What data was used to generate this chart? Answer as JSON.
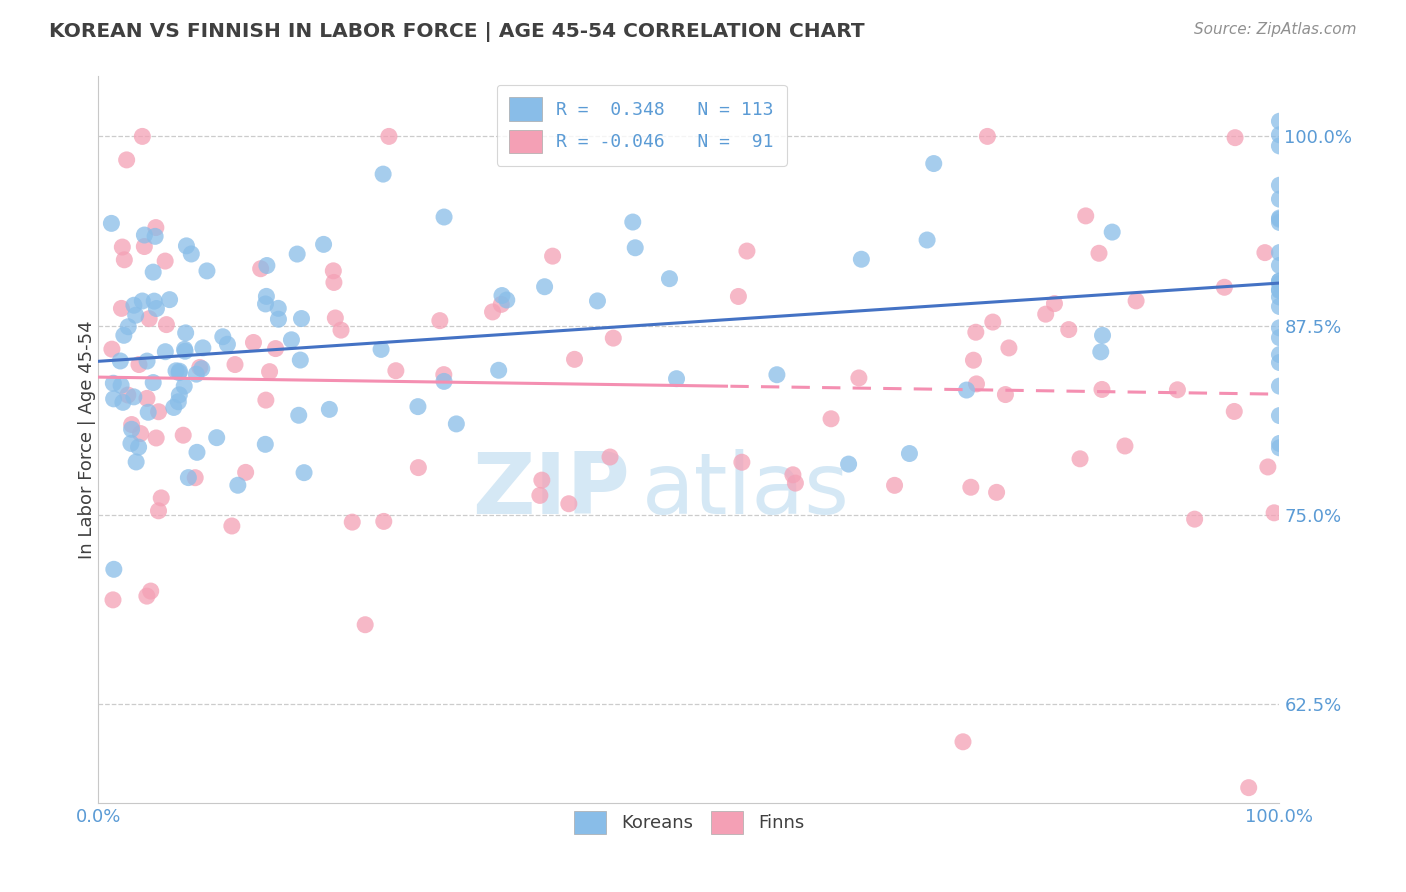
{
  "title": "KOREAN VS FINNISH IN LABOR FORCE | AGE 45-54 CORRELATION CHART",
  "source": "Source: ZipAtlas.com",
  "ylabel": "In Labor Force | Age 45-54",
  "xlim": [
    0.0,
    1.0
  ],
  "ylim": [
    0.56,
    1.04
  ],
  "ytick_labels": [
    "62.5%",
    "75.0%",
    "87.5%",
    "100.0%"
  ],
  "ytick_values": [
    0.625,
    0.75,
    0.875,
    1.0
  ],
  "xtick_labels": [
    "0.0%",
    "100.0%"
  ],
  "xtick_values": [
    0.0,
    1.0
  ],
  "korean_color": "#89bde8",
  "finn_color": "#f4a0b5",
  "korean_line_color": "#4472c4",
  "finn_line_color": "#f48fb1",
  "background_color": "#ffffff",
  "grid_color": "#cccccc",
  "title_color": "#404040",
  "source_color": "#909090",
  "watermark_color": "#d5e8f5",
  "tick_color": "#5b9bd5",
  "label_color": "#404040"
}
